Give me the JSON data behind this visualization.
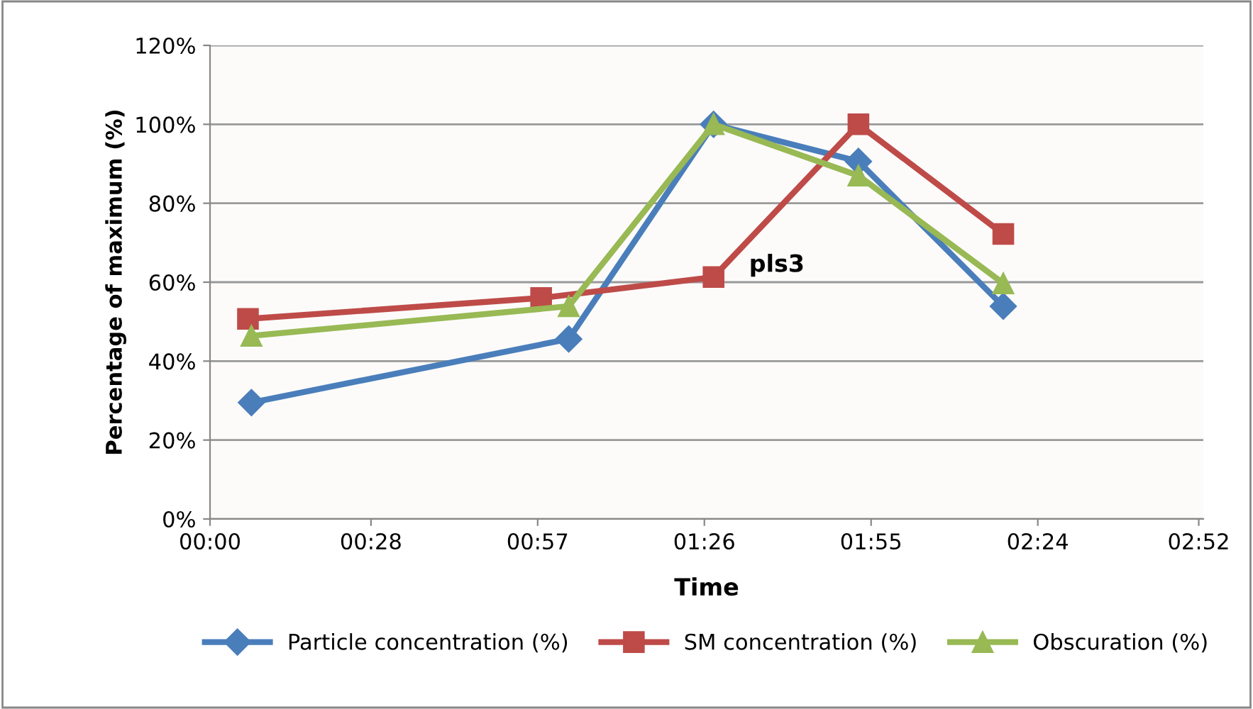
{
  "chart_data": {
    "type": "line",
    "xlabel": "Time",
    "ylabel": "Percentage of maximum (%)",
    "xlim": [
      0,
      2.88
    ],
    "xticks": [
      {
        "value": 0,
        "label": "00:00"
      },
      {
        "value": 0.4667,
        "label": "00:28"
      },
      {
        "value": 0.95,
        "label": "00:57"
      },
      {
        "value": 1.4333,
        "label": "01:26"
      },
      {
        "value": 1.9167,
        "label": "01:55"
      },
      {
        "value": 2.4,
        "label": "02:24"
      },
      {
        "value": 2.8667,
        "label": "02:52"
      }
    ],
    "ylim": [
      0,
      120
    ],
    "yticks": [
      {
        "value": 0,
        "label": "0%"
      },
      {
        "value": 20,
        "label": "20%"
      },
      {
        "value": 40,
        "label": "40%"
      },
      {
        "value": 60,
        "label": "60%"
      },
      {
        "value": 80,
        "label": "80%"
      },
      {
        "value": 100,
        "label": "100%"
      },
      {
        "value": 120,
        "label": "120%"
      }
    ],
    "grid": "y",
    "legend": "bottom",
    "series": [
      {
        "name": "Particle concentration (%)",
        "color": "#4a7ebb",
        "marker": "diamond",
        "x": [
          0.12,
          1.04,
          1.46,
          1.88,
          2.3
        ],
        "values": [
          29.5,
          45.6,
          100,
          90.6,
          53.9
        ]
      },
      {
        "name": "SM concentration (%)",
        "color": "#be4b48",
        "marker": "square",
        "x": [
          0.11,
          0.96,
          1.46,
          1.88,
          2.3
        ],
        "values": [
          50.7,
          56,
          61.3,
          100,
          72.2
        ]
      },
      {
        "name": "Obscuration (%)",
        "color": "#98b954",
        "marker": "triangle",
        "x": [
          0.12,
          1.04,
          1.46,
          1.88,
          2.3
        ],
        "values": [
          46.4,
          53.9,
          100,
          87,
          59.7
        ]
      }
    ],
    "annotations": [
      {
        "text": "pls3",
        "x": 1.46,
        "y": 61.3
      }
    ]
  }
}
